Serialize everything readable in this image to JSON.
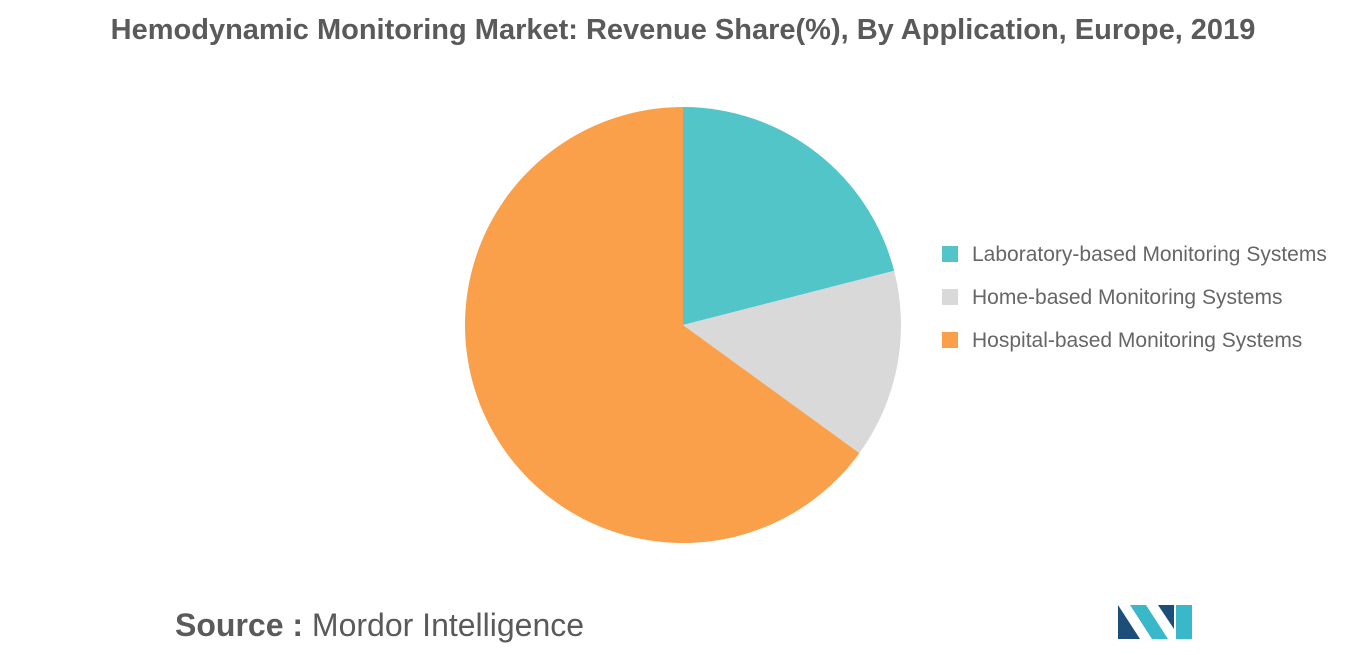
{
  "chart_data": {
    "type": "pie",
    "title": "Hemodynamic Monitoring Market: Revenue Share(%), By Application, Europe, 2019",
    "categories": [
      "Laboratory-based Monitoring Systems",
      "Home-based Monitoring Systems",
      "Hospital-based Monitoring Systems"
    ],
    "values": [
      21,
      14,
      65
    ],
    "colors": [
      "#52c5c9",
      "#d9d9d9",
      "#fba04a"
    ],
    "legend_position": "right"
  },
  "source": {
    "label": "Source :",
    "text": "Mordor Intelligence"
  },
  "logo": {
    "colors": [
      "#1d4e7a",
      "#39b8c9"
    ]
  }
}
